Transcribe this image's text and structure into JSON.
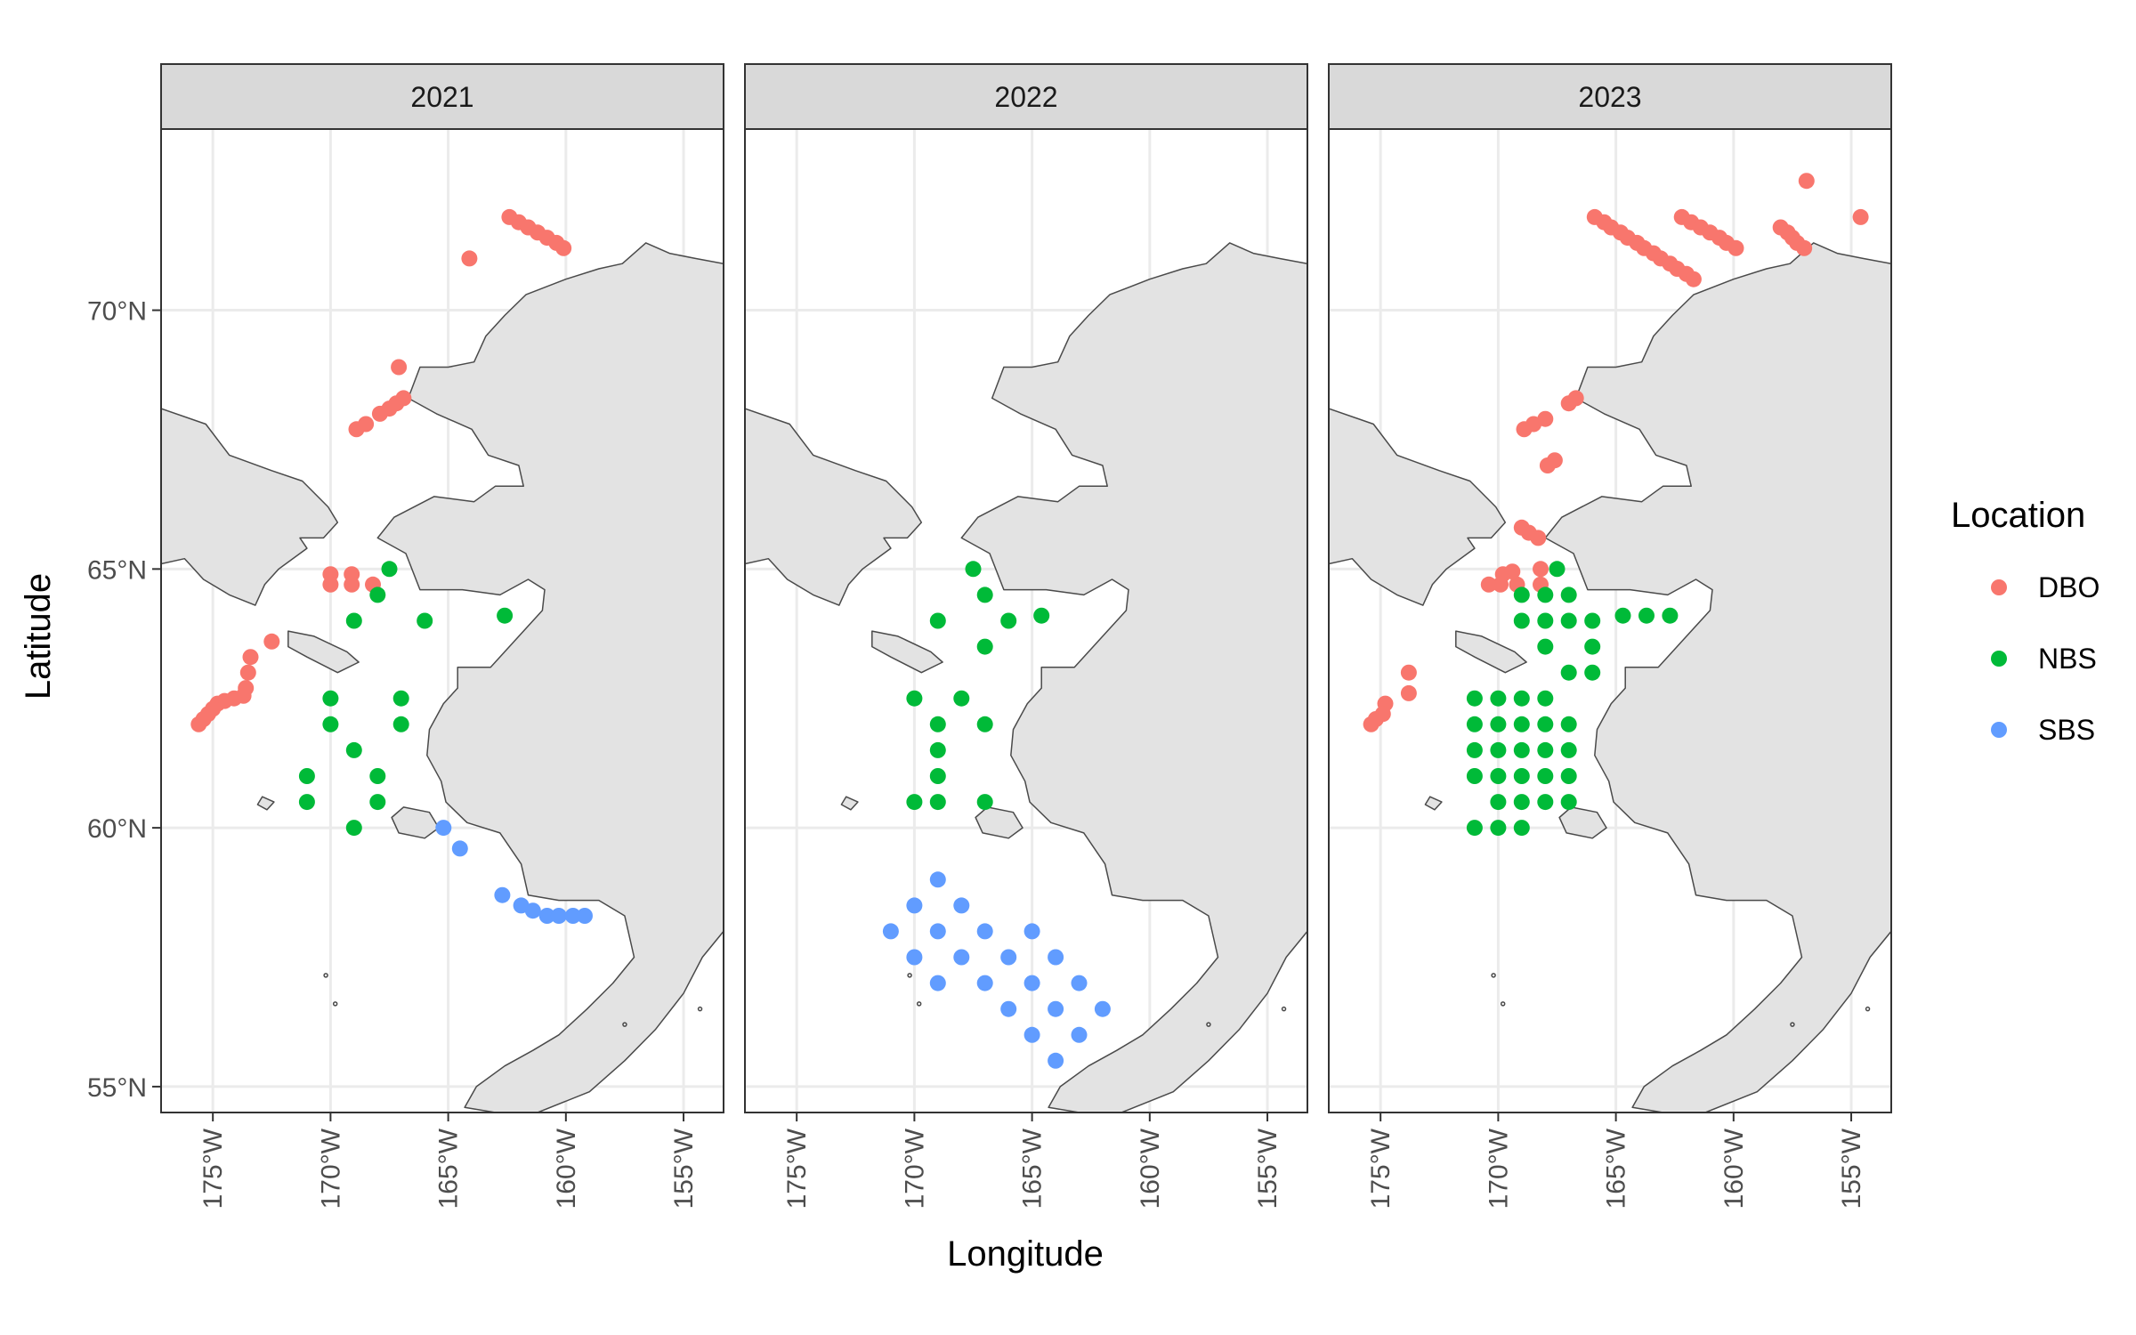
{
  "chart_data": {
    "type": "scatter",
    "xlabel": "Longitude",
    "ylabel": "Latitude",
    "xlim": [
      -177.2,
      -153.3
    ],
    "ylim": [
      54.5,
      73.5
    ],
    "x_ticks": [
      {
        "value": -175,
        "label": "175°W"
      },
      {
        "value": -170,
        "label": "170°W"
      },
      {
        "value": -165,
        "label": "165°W"
      },
      {
        "value": -160,
        "label": "160°W"
      },
      {
        "value": -155,
        "label": "155°W"
      }
    ],
    "y_ticks": [
      {
        "value": 55,
        "label": "55°N"
      },
      {
        "value": 60,
        "label": "60°N"
      },
      {
        "value": 65,
        "label": "65°N"
      },
      {
        "value": 70,
        "label": "70°N"
      }
    ],
    "grid": true,
    "legend": {
      "title": "Location",
      "placement": "right",
      "entries": [
        {
          "name": "DBO",
          "color": "#F8766D"
        },
        {
          "name": "NBS",
          "color": "#00BA38"
        },
        {
          "name": "SBS",
          "color": "#619CFF"
        }
      ]
    },
    "colors": {
      "DBO": "#F8766D",
      "NBS": "#00BA38",
      "SBS": "#619CFF",
      "land": "#e3e3e3",
      "coast": "#4a4a4a",
      "strip": "#d9d9d9",
      "grid": "#ebebeb"
    },
    "panels": [
      {
        "label": "2021",
        "series": [
          {
            "name": "DBO",
            "points": [
              [
                -162.4,
                71.8
              ],
              [
                -162.0,
                71.7
              ],
              [
                -161.6,
                71.6
              ],
              [
                -161.2,
                71.5
              ],
              [
                -160.8,
                71.4
              ],
              [
                -160.4,
                71.3
              ],
              [
                -160.1,
                71.2
              ],
              [
                -164.1,
                71.0
              ],
              [
                -167.1,
                68.9
              ],
              [
                -168.9,
                67.7
              ],
              [
                -168.5,
                67.8
              ],
              [
                -167.9,
                68.0
              ],
              [
                -167.5,
                68.1
              ],
              [
                -167.2,
                68.2
              ],
              [
                -166.9,
                68.3
              ],
              [
                -170.0,
                64.9
              ],
              [
                -169.1,
                64.9
              ],
              [
                -170.0,
                64.7
              ],
              [
                -169.1,
                64.7
              ],
              [
                -168.2,
                64.7
              ],
              [
                -172.5,
                63.6
              ],
              [
                -173.4,
                63.3
              ],
              [
                -173.5,
                63.0
              ],
              [
                -173.6,
                62.7
              ],
              [
                -173.7,
                62.55
              ],
              [
                -174.1,
                62.5
              ],
              [
                -174.5,
                62.45
              ],
              [
                -174.8,
                62.4
              ],
              [
                -175.0,
                62.3
              ],
              [
                -175.2,
                62.2
              ],
              [
                -175.4,
                62.1
              ],
              [
                -175.6,
                62.0
              ]
            ]
          },
          {
            "name": "NBS",
            "points": [
              [
                -167.5,
                65.0
              ],
              [
                -168.0,
                64.5
              ],
              [
                -169.0,
                64.0
              ],
              [
                -166.0,
                64.0
              ],
              [
                -162.6,
                64.1
              ],
              [
                -170.0,
                62.5
              ],
              [
                -167.0,
                62.5
              ],
              [
                -170.0,
                62.0
              ],
              [
                -167.0,
                62.0
              ],
              [
                -169.0,
                61.5
              ],
              [
                -171.0,
                61.0
              ],
              [
                -168.0,
                61.0
              ],
              [
                -171.0,
                60.5
              ],
              [
                -168.0,
                60.5
              ],
              [
                -169.0,
                60.0
              ]
            ]
          },
          {
            "name": "SBS",
            "points": [
              [
                -165.2,
                60.0
              ],
              [
                -164.5,
                59.6
              ],
              [
                -162.7,
                58.7
              ],
              [
                -161.9,
                58.5
              ],
              [
                -161.4,
                58.4
              ],
              [
                -160.8,
                58.3
              ],
              [
                -160.3,
                58.3
              ],
              [
                -159.7,
                58.3
              ],
              [
                -159.2,
                58.3
              ]
            ]
          }
        ]
      },
      {
        "label": "2022",
        "series": [
          {
            "name": "DBO",
            "points": []
          },
          {
            "name": "NBS",
            "points": [
              [
                -167.5,
                65.0
              ],
              [
                -167.0,
                64.5
              ],
              [
                -169.0,
                64.0
              ],
              [
                -166.0,
                64.0
              ],
              [
                -164.6,
                64.1
              ],
              [
                -167.0,
                63.5
              ],
              [
                -170.0,
                62.5
              ],
              [
                -168.0,
                62.5
              ],
              [
                -169.0,
                62.0
              ],
              [
                -167.0,
                62.0
              ],
              [
                -169.0,
                61.5
              ],
              [
                -169.0,
                61.0
              ],
              [
                -170.0,
                60.5
              ],
              [
                -169.0,
                60.5
              ],
              [
                -167.0,
                60.5
              ]
            ]
          },
          {
            "name": "SBS",
            "points": [
              [
                -169.0,
                59.0
              ],
              [
                -170.0,
                58.5
              ],
              [
                -168.0,
                58.5
              ],
              [
                -171.0,
                58.0
              ],
              [
                -169.0,
                58.0
              ],
              [
                -167.0,
                58.0
              ],
              [
                -165.0,
                58.0
              ],
              [
                -170.0,
                57.5
              ],
              [
                -168.0,
                57.5
              ],
              [
                -166.0,
                57.5
              ],
              [
                -164.0,
                57.5
              ],
              [
                -169.0,
                57.0
              ],
              [
                -167.0,
                57.0
              ],
              [
                -165.0,
                57.0
              ],
              [
                -163.0,
                57.0
              ],
              [
                -166.0,
                56.5
              ],
              [
                -164.0,
                56.5
              ],
              [
                -162.0,
                56.5
              ],
              [
                -165.0,
                56.0
              ],
              [
                -163.0,
                56.0
              ],
              [
                -164.0,
                55.5
              ]
            ]
          }
        ]
      },
      {
        "label": "2023",
        "series": [
          {
            "name": "DBO",
            "points": [
              [
                -165.9,
                71.8
              ],
              [
                -165.5,
                71.7
              ],
              [
                -165.2,
                71.6
              ],
              [
                -164.8,
                71.5
              ],
              [
                -164.5,
                71.4
              ],
              [
                -164.1,
                71.3
              ],
              [
                -163.8,
                71.2
              ],
              [
                -163.4,
                71.1
              ],
              [
                -163.1,
                71.0
              ],
              [
                -162.7,
                70.9
              ],
              [
                -162.4,
                70.8
              ],
              [
                -162.0,
                70.7
              ],
              [
                -161.7,
                70.6
              ],
              [
                -162.2,
                71.8
              ],
              [
                -161.8,
                71.7
              ],
              [
                -161.4,
                71.6
              ],
              [
                -161.0,
                71.5
              ],
              [
                -160.6,
                71.4
              ],
              [
                -160.3,
                71.3
              ],
              [
                -159.9,
                71.2
              ],
              [
                -158.0,
                71.6
              ],
              [
                -157.7,
                71.5
              ],
              [
                -157.5,
                71.4
              ],
              [
                -157.3,
                71.3
              ],
              [
                -157.0,
                71.2
              ],
              [
                -156.9,
                72.5
              ],
              [
                -154.6,
                71.8
              ],
              [
                -168.9,
                67.7
              ],
              [
                -168.5,
                67.8
              ],
              [
                -168.0,
                67.9
              ],
              [
                -167.0,
                68.2
              ],
              [
                -166.7,
                68.3
              ],
              [
                -167.9,
                67.0
              ],
              [
                -167.6,
                67.1
              ],
              [
                -169.0,
                65.8
              ],
              [
                -168.7,
                65.7
              ],
              [
                -168.3,
                65.6
              ],
              [
                -170.4,
                64.7
              ],
              [
                -169.9,
                64.7
              ],
              [
                -169.2,
                64.7
              ],
              [
                -168.2,
                64.7
              ],
              [
                -169.8,
                64.9
              ],
              [
                -169.4,
                64.95
              ],
              [
                -168.2,
                65.0
              ],
              [
                -173.8,
                63.0
              ],
              [
                -173.8,
                62.6
              ],
              [
                -174.8,
                62.4
              ],
              [
                -174.9,
                62.2
              ],
              [
                -175.2,
                62.1
              ],
              [
                -175.4,
                62.0
              ]
            ]
          },
          {
            "name": "NBS",
            "points": [
              [
                -167.5,
                65.0
              ],
              [
                -169.0,
                64.5
              ],
              [
                -168.0,
                64.5
              ],
              [
                -167.0,
                64.5
              ],
              [
                -169.0,
                64.0
              ],
              [
                -168.0,
                64.0
              ],
              [
                -167.0,
                64.0
              ],
              [
                -166.0,
                64.0
              ],
              [
                -164.7,
                64.1
              ],
              [
                -163.7,
                64.1
              ],
              [
                -162.7,
                64.1
              ],
              [
                -168.0,
                63.5
              ],
              [
                -166.0,
                63.5
              ],
              [
                -167.0,
                63.0
              ],
              [
                -166.0,
                63.0
              ],
              [
                -171.0,
                62.5
              ],
              [
                -170.0,
                62.5
              ],
              [
                -169.0,
                62.5
              ],
              [
                -168.0,
                62.5
              ],
              [
                -171.0,
                62.0
              ],
              [
                -170.0,
                62.0
              ],
              [
                -169.0,
                62.0
              ],
              [
                -168.0,
                62.0
              ],
              [
                -167.0,
                62.0
              ],
              [
                -171.0,
                61.5
              ],
              [
                -170.0,
                61.5
              ],
              [
                -169.0,
                61.5
              ],
              [
                -168.0,
                61.5
              ],
              [
                -167.0,
                61.5
              ],
              [
                -171.0,
                61.0
              ],
              [
                -170.0,
                61.0
              ],
              [
                -169.0,
                61.0
              ],
              [
                -168.0,
                61.0
              ],
              [
                -167.0,
                61.0
              ],
              [
                -170.0,
                60.5
              ],
              [
                -169.0,
                60.5
              ],
              [
                -168.0,
                60.5
              ],
              [
                -167.0,
                60.5
              ],
              [
                -171.0,
                60.0
              ],
              [
                -170.0,
                60.0
              ],
              [
                -169.0,
                60.0
              ]
            ]
          },
          {
            "name": "SBS",
            "points": []
          }
        ]
      }
    ]
  }
}
